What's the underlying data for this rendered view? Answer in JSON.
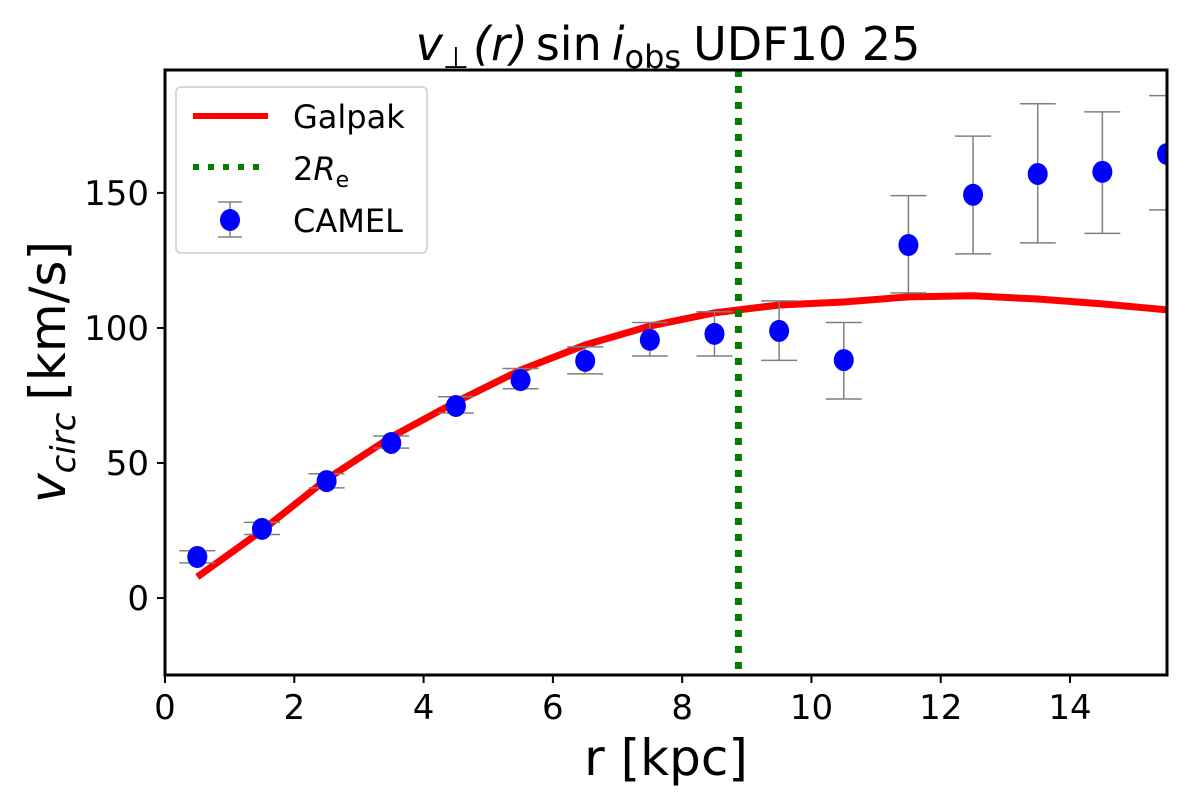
{
  "chart_data": {
    "type": "scatter",
    "title": {
      "v": "v",
      "perp": "⊥",
      "r": "(r)",
      "sin": "sin",
      "i": "i",
      "obs": "obs",
      "rest": "UDF10 25"
    },
    "xlabel": "r [kpc]",
    "ylabel": {
      "v": "v",
      "sub": "circ",
      "unit": "[km/s]"
    },
    "xlim": [
      0,
      15.5
    ],
    "ylim": [
      -28.5,
      195.5
    ],
    "xticks": [
      0,
      2,
      4,
      6,
      8,
      10,
      12,
      14
    ],
    "yticks": [
      0,
      50,
      100,
      150
    ],
    "grid": false,
    "legend_position": "top-left",
    "legend": [
      {
        "label": "Galpak"
      },
      {
        "label": "2",
        "label_italic": "R",
        "label_sub": "e"
      },
      {
        "label": "CAMEL"
      }
    ],
    "series": [
      {
        "name": "Galpak",
        "kind": "line",
        "color": "#ff0000",
        "x": [
          0.5,
          1.5,
          2.5,
          3.5,
          4.5,
          5.5,
          6.5,
          7.5,
          8.5,
          9.5,
          10.5,
          11.5,
          12.5,
          13.5,
          14.5,
          15.5
        ],
        "y": [
          7.8,
          25,
          44,
          59.6,
          72.6,
          84.4,
          93.7,
          100.7,
          105.6,
          108.5,
          109.6,
          111.5,
          111.9,
          110.7,
          108.9,
          106.7
        ]
      },
      {
        "name": "2Re",
        "kind": "vline",
        "color": "#008000",
        "x": 8.87
      },
      {
        "name": "CAMEL",
        "kind": "errorbar",
        "color": "#0000ff",
        "error_color": "#808080",
        "x": [
          0.5,
          1.5,
          2.5,
          3.5,
          4.5,
          5.5,
          6.5,
          7.5,
          8.5,
          9.5,
          10.5,
          11.5,
          12.5,
          13.5,
          14.5,
          15.5
        ],
        "y": [
          15.2,
          25.6,
          43.3,
          57.4,
          71.1,
          80.7,
          87.8,
          95.6,
          97.8,
          98.9,
          88.1,
          130.7,
          149.3,
          157,
          157.8,
          164.4
        ],
        "y_low": [
          13,
          23.5,
          40.8,
          55.5,
          68.5,
          77.5,
          83,
          89.6,
          89.6,
          88,
          73.7,
          113,
          127.4,
          131.5,
          135,
          143.7
        ],
        "y_high": [
          17.5,
          28,
          46,
          60,
          74.5,
          85,
          93,
          102,
          106,
          110,
          102,
          149,
          171,
          183,
          180,
          186
        ]
      }
    ]
  }
}
